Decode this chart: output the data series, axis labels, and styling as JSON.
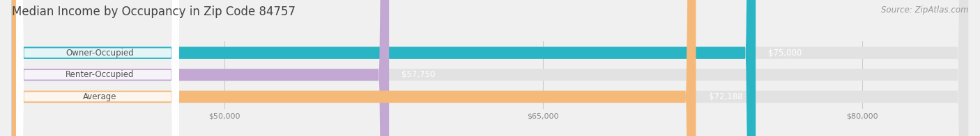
{
  "title": "Median Income by Occupancy in Zip Code 84757",
  "source": "Source: ZipAtlas.com",
  "categories": [
    "Owner-Occupied",
    "Renter-Occupied",
    "Average"
  ],
  "values": [
    75000,
    57750,
    72188
  ],
  "labels": [
    "$75,000",
    "$57,750",
    "$72,188"
  ],
  "bar_colors": [
    "#2ab5c5",
    "#c4a8d4",
    "#f5ba7a"
  ],
  "bar_bg_color": "#e2e2e2",
  "background_color": "#f0f0f0",
  "xmin": 40000,
  "xmax": 85000,
  "xticks": [
    50000,
    65000,
    80000
  ],
  "xtick_labels": [
    "$50,000",
    "$65,000",
    "$80,000"
  ],
  "title_fontsize": 12,
  "source_fontsize": 8.5,
  "label_fontsize": 8.5,
  "category_fontsize": 8.5
}
